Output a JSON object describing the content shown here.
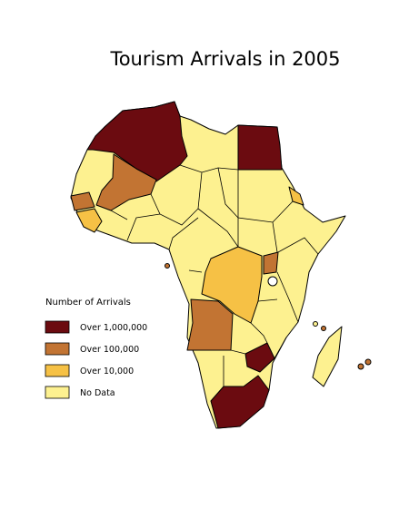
{
  "title": "Tourism Arrivals in 2005",
  "legend": {
    "title": "Number of Arrivals",
    "items": [
      {
        "label": "Over 1,000,000",
        "color": "#6b0b10"
      },
      {
        "label": "Over 100,000",
        "color": "#c27433"
      },
      {
        "label": "Over 10,000",
        "color": "#f6c145"
      },
      {
        "label": "No Data",
        "color": "#fdf190"
      }
    ]
  }
}
